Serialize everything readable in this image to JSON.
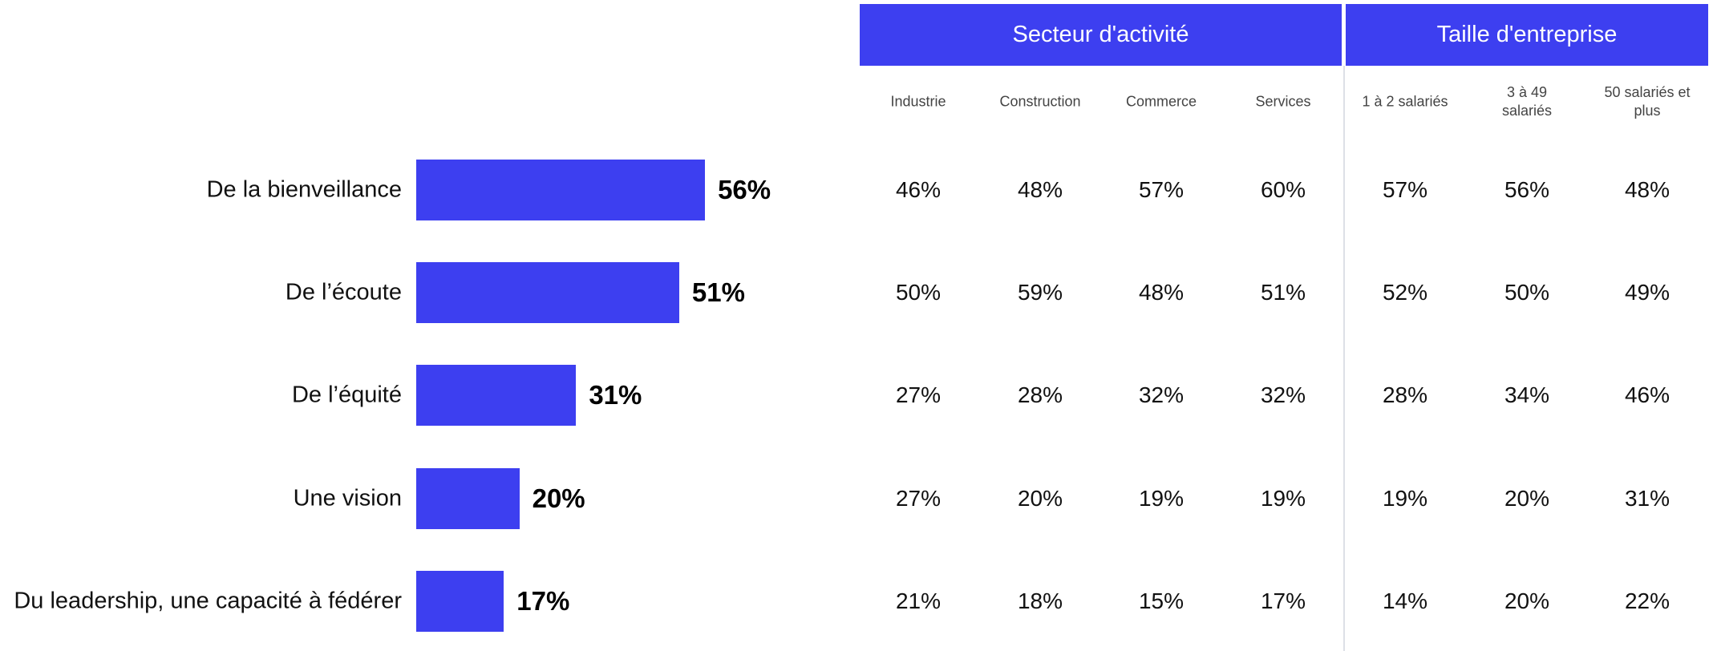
{
  "chart_data": {
    "type": "barh",
    "categories": [
      "De la bienveillance",
      "De l’écoute",
      "De l’équité",
      "Une vision",
      "Du leadership, une capacité à fédérer"
    ],
    "values": [
      56,
      51,
      31,
      20,
      17
    ],
    "value_labels": [
      "56%",
      "51%",
      "31%",
      "20%",
      "17%"
    ],
    "color": "#3d3ff0"
  },
  "table": {
    "groups": [
      {
        "label": "Secteur d'activité",
        "span": 4
      },
      {
        "label": "Taille d'entreprise",
        "span": 3
      }
    ],
    "columns": [
      "Industrie",
      "Construction",
      "Commerce",
      "Services",
      "1 à 2 salariés",
      "3 à 49 salariés",
      "50 salariés et plus"
    ],
    "rows": [
      [
        "46%",
        "48%",
        "57%",
        "60%",
        "57%",
        "56%",
        "48%"
      ],
      [
        "50%",
        "59%",
        "48%",
        "51%",
        "52%",
        "50%",
        "49%"
      ],
      [
        "27%",
        "28%",
        "32%",
        "32%",
        "28%",
        "34%",
        "46%"
      ],
      [
        "27%",
        "20%",
        "19%",
        "19%",
        "19%",
        "20%",
        "31%"
      ],
      [
        "21%",
        "18%",
        "15%",
        "17%",
        "14%",
        "20%",
        "22%"
      ]
    ]
  }
}
